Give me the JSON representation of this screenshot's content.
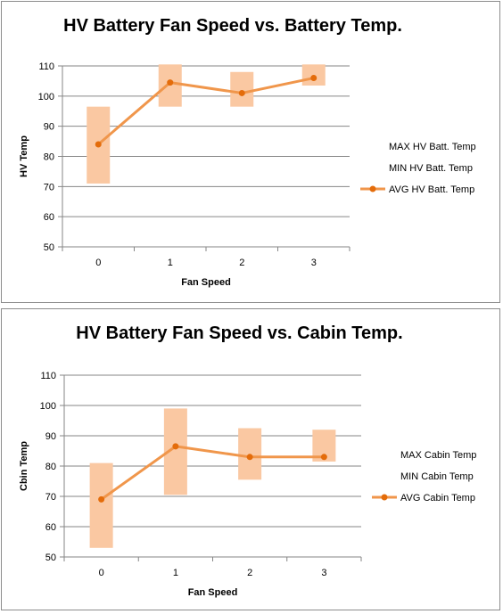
{
  "chart_data": [
    {
      "type": "line",
      "title": "HV Battery Fan Speed vs. Battery Temp.",
      "xlabel": "Fan Speed",
      "ylabel": "HV Temp",
      "categories": [
        "0",
        "1",
        "2",
        "3"
      ],
      "ylim": [
        50,
        110
      ],
      "yticks": [
        "50",
        "60",
        "70",
        "80",
        "90",
        "100",
        "110"
      ],
      "grid": true,
      "legend_position": "right",
      "series": [
        {
          "name": "MAX HV Batt. Temp",
          "values": [
            96.5,
            110.5,
            108,
            110.5
          ]
        },
        {
          "name": "MIN HV Batt. Temp",
          "values": [
            71,
            96.5,
            96.5,
            103.5
          ]
        },
        {
          "name": "AVG HV Batt. Temp",
          "values": [
            84,
            104.5,
            101,
            106
          ]
        }
      ]
    },
    {
      "type": "line",
      "title": "HV Battery Fan Speed vs. Cabin Temp.",
      "xlabel": "Fan Speed",
      "ylabel": "Cbin Temp",
      "categories": [
        "0",
        "1",
        "2",
        "3"
      ],
      "ylim": [
        50,
        110
      ],
      "yticks": [
        "50",
        "60",
        "70",
        "80",
        "90",
        "100",
        "110"
      ],
      "grid": true,
      "legend_position": "right",
      "series": [
        {
          "name": "MAX Cabin Temp",
          "values": [
            81,
            99,
            92.5,
            92
          ]
        },
        {
          "name": "MIN Cabin Temp",
          "values": [
            53,
            70.5,
            75.5,
            81.5
          ]
        },
        {
          "name": "AVG Cabin Temp",
          "values": [
            69,
            86.5,
            83,
            83
          ]
        }
      ]
    }
  ],
  "colors": {
    "band": "#fac8a2",
    "line": "#f0964b",
    "marker": "#e46c0a",
    "grid": "#868686",
    "text": "#000000"
  }
}
